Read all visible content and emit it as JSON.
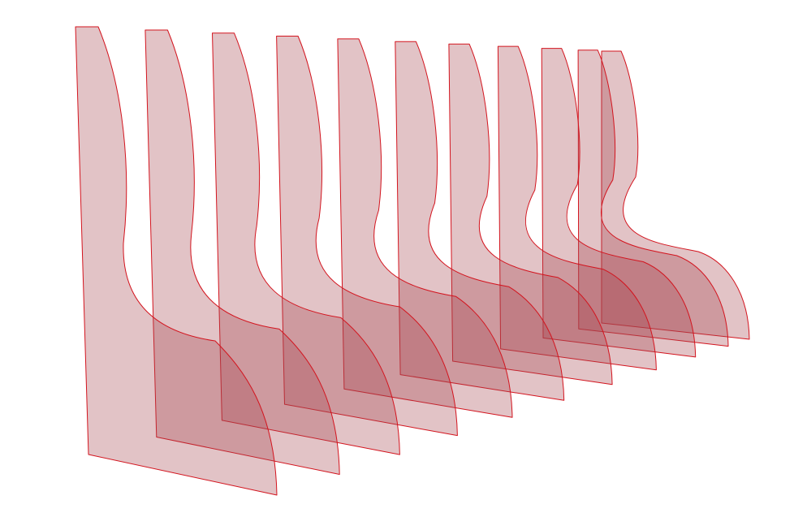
{
  "scene": {
    "panel_fill": "#a5454e",
    "panel_fill_opacity": 0.32,
    "panel_stroke": "#d3141e",
    "background": "#ffffff",
    "panel_count": 11
  }
}
